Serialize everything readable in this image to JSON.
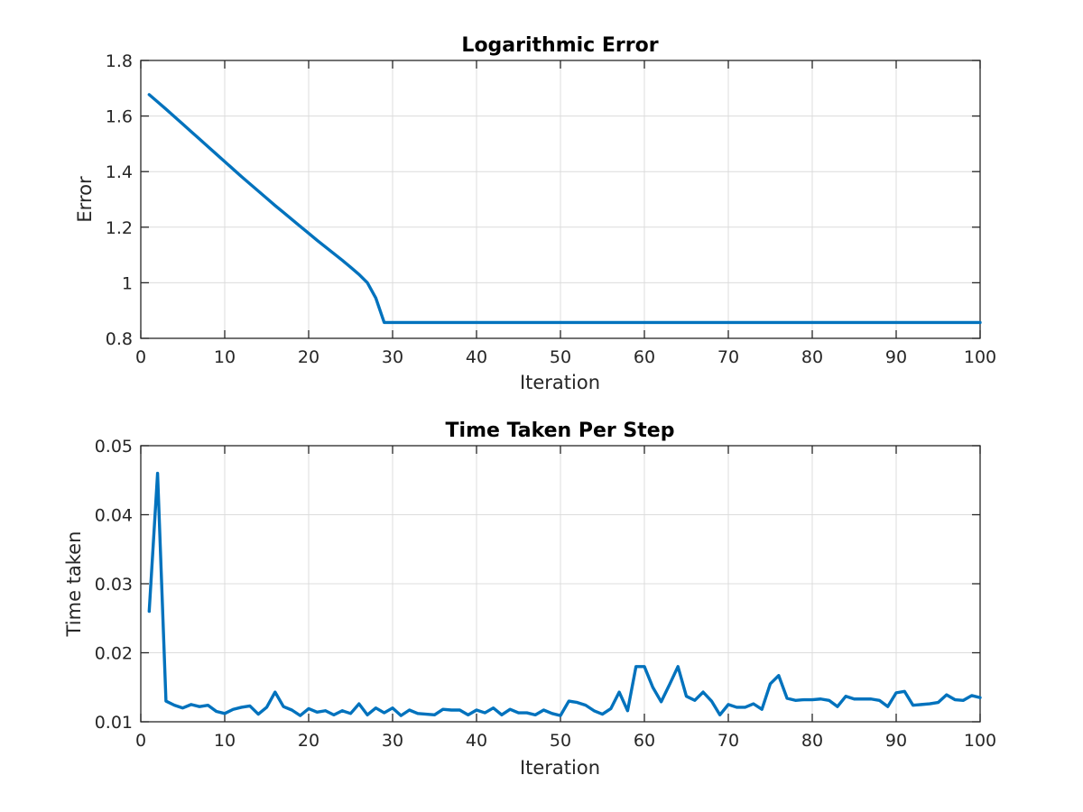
{
  "chart_data": [
    {
      "type": "line",
      "title": "Logarithmic Error",
      "xlabel": "Iteration",
      "ylabel": "Error",
      "xlim": [
        0,
        100
      ],
      "ylim": [
        0.8,
        1.8
      ],
      "xticks": [
        0,
        10,
        20,
        30,
        40,
        50,
        60,
        70,
        80,
        90,
        100
      ],
      "yticks": [
        0.8,
        1,
        1.2,
        1.4,
        1.6,
        1.8
      ],
      "xtick_labels": [
        "0",
        "10",
        "20",
        "30",
        "40",
        "50",
        "60",
        "70",
        "80",
        "90",
        "100"
      ],
      "ytick_labels": [
        "0.8",
        "1",
        "1.2",
        "1.4",
        "1.6",
        "1.8"
      ],
      "grid": true,
      "color": "#0072bd",
      "series": [
        {
          "x": [
            1,
            2,
            3,
            4,
            5,
            6,
            7,
            8,
            9,
            10,
            11,
            12,
            13,
            14,
            15,
            16,
            17,
            18,
            19,
            20,
            21,
            22,
            23,
            24,
            25,
            26,
            27,
            28,
            29,
            30,
            31,
            32,
            33,
            34,
            35,
            36,
            37,
            38,
            39,
            40,
            41,
            42,
            43,
            44,
            45,
            46,
            47,
            48,
            49,
            50,
            51,
            52,
            53,
            54,
            55,
            56,
            57,
            58,
            59,
            60,
            61,
            62,
            63,
            64,
            65,
            66,
            67,
            68,
            69,
            70,
            71,
            72,
            73,
            74,
            75,
            76,
            77,
            78,
            79,
            80,
            81,
            82,
            83,
            84,
            85,
            86,
            87,
            88,
            89,
            90,
            91,
            92,
            93,
            94,
            95,
            96,
            97,
            98,
            99,
            100
          ],
          "values": [
            1.677,
            1.651,
            1.625,
            1.598,
            1.571,
            1.544,
            1.517,
            1.49,
            1.463,
            1.436,
            1.409,
            1.382,
            1.356,
            1.33,
            1.304,
            1.278,
            1.253,
            1.228,
            1.203,
            1.178,
            1.153,
            1.129,
            1.105,
            1.081,
            1.056,
            1.03,
            1.0,
            0.945,
            0.857,
            0.857,
            0.857,
            0.857,
            0.857,
            0.857,
            0.857,
            0.857,
            0.857,
            0.857,
            0.857,
            0.857,
            0.857,
            0.857,
            0.857,
            0.857,
            0.857,
            0.857,
            0.857,
            0.857,
            0.857,
            0.857,
            0.857,
            0.857,
            0.857,
            0.857,
            0.857,
            0.857,
            0.857,
            0.857,
            0.857,
            0.857,
            0.857,
            0.857,
            0.857,
            0.857,
            0.857,
            0.857,
            0.857,
            0.857,
            0.857,
            0.857,
            0.857,
            0.857,
            0.857,
            0.857,
            0.857,
            0.857,
            0.857,
            0.857,
            0.857,
            0.857,
            0.857,
            0.857,
            0.857,
            0.857,
            0.857,
            0.857,
            0.857,
            0.857,
            0.857,
            0.857,
            0.857,
            0.857,
            0.857,
            0.857,
            0.857,
            0.857,
            0.857,
            0.857,
            0.857,
            0.857
          ]
        }
      ]
    },
    {
      "type": "line",
      "title": "Time Taken Per Step",
      "xlabel": "Iteration",
      "ylabel": "Time taken",
      "xlim": [
        0,
        100
      ],
      "ylim": [
        0.01,
        0.05
      ],
      "xticks": [
        0,
        10,
        20,
        30,
        40,
        50,
        60,
        70,
        80,
        90,
        100
      ],
      "yticks": [
        0.01,
        0.02,
        0.03,
        0.04,
        0.05
      ],
      "xtick_labels": [
        "0",
        "10",
        "20",
        "30",
        "40",
        "50",
        "60",
        "70",
        "80",
        "90",
        "100"
      ],
      "ytick_labels": [
        "0.01",
        "0.02",
        "0.03",
        "0.04",
        "0.05"
      ],
      "grid": true,
      "color": "#0072bd",
      "series": [
        {
          "x": [
            1,
            2,
            3,
            4,
            5,
            6,
            7,
            8,
            9,
            10,
            11,
            12,
            13,
            14,
            15,
            16,
            17,
            18,
            19,
            20,
            21,
            22,
            23,
            24,
            25,
            26,
            27,
            28,
            29,
            30,
            31,
            32,
            33,
            34,
            35,
            36,
            37,
            38,
            39,
            40,
            41,
            42,
            43,
            44,
            45,
            46,
            47,
            48,
            49,
            50,
            51,
            52,
            53,
            54,
            55,
            56,
            57,
            58,
            59,
            60,
            61,
            62,
            63,
            64,
            65,
            66,
            67,
            68,
            69,
            70,
            71,
            72,
            73,
            74,
            75,
            76,
            77,
            78,
            79,
            80,
            81,
            82,
            83,
            84,
            85,
            86,
            87,
            88,
            89,
            90,
            91,
            92,
            93,
            94,
            95,
            96,
            97,
            98,
            99,
            100
          ],
          "values": [
            0.026,
            0.046,
            0.013,
            0.0124,
            0.012,
            0.0125,
            0.0122,
            0.0124,
            0.0115,
            0.0112,
            0.0118,
            0.0121,
            0.0123,
            0.0111,
            0.0121,
            0.0143,
            0.0122,
            0.0117,
            0.0109,
            0.0119,
            0.0114,
            0.0116,
            0.011,
            0.0116,
            0.0112,
            0.0126,
            0.011,
            0.012,
            0.0113,
            0.012,
            0.0109,
            0.0117,
            0.0112,
            0.0111,
            0.011,
            0.0118,
            0.0117,
            0.0117,
            0.011,
            0.0117,
            0.0113,
            0.012,
            0.011,
            0.0118,
            0.0113,
            0.0113,
            0.011,
            0.0117,
            0.0112,
            0.0109,
            0.013,
            0.0128,
            0.0124,
            0.0116,
            0.0111,
            0.0119,
            0.0143,
            0.0116,
            0.018,
            0.018,
            0.015,
            0.0129,
            0.0154,
            0.018,
            0.0137,
            0.0131,
            0.0143,
            0.013,
            0.011,
            0.0125,
            0.0121,
            0.0121,
            0.0126,
            0.0118,
            0.0155,
            0.0167,
            0.0134,
            0.0131,
            0.0132,
            0.0132,
            0.0133,
            0.0131,
            0.0122,
            0.0137,
            0.0133,
            0.0133,
            0.0133,
            0.0131,
            0.0122,
            0.0142,
            0.0144,
            0.0124,
            0.0125,
            0.0126,
            0.0128,
            0.0139,
            0.0132,
            0.0131,
            0.0138,
            0.0135
          ]
        }
      ]
    }
  ]
}
